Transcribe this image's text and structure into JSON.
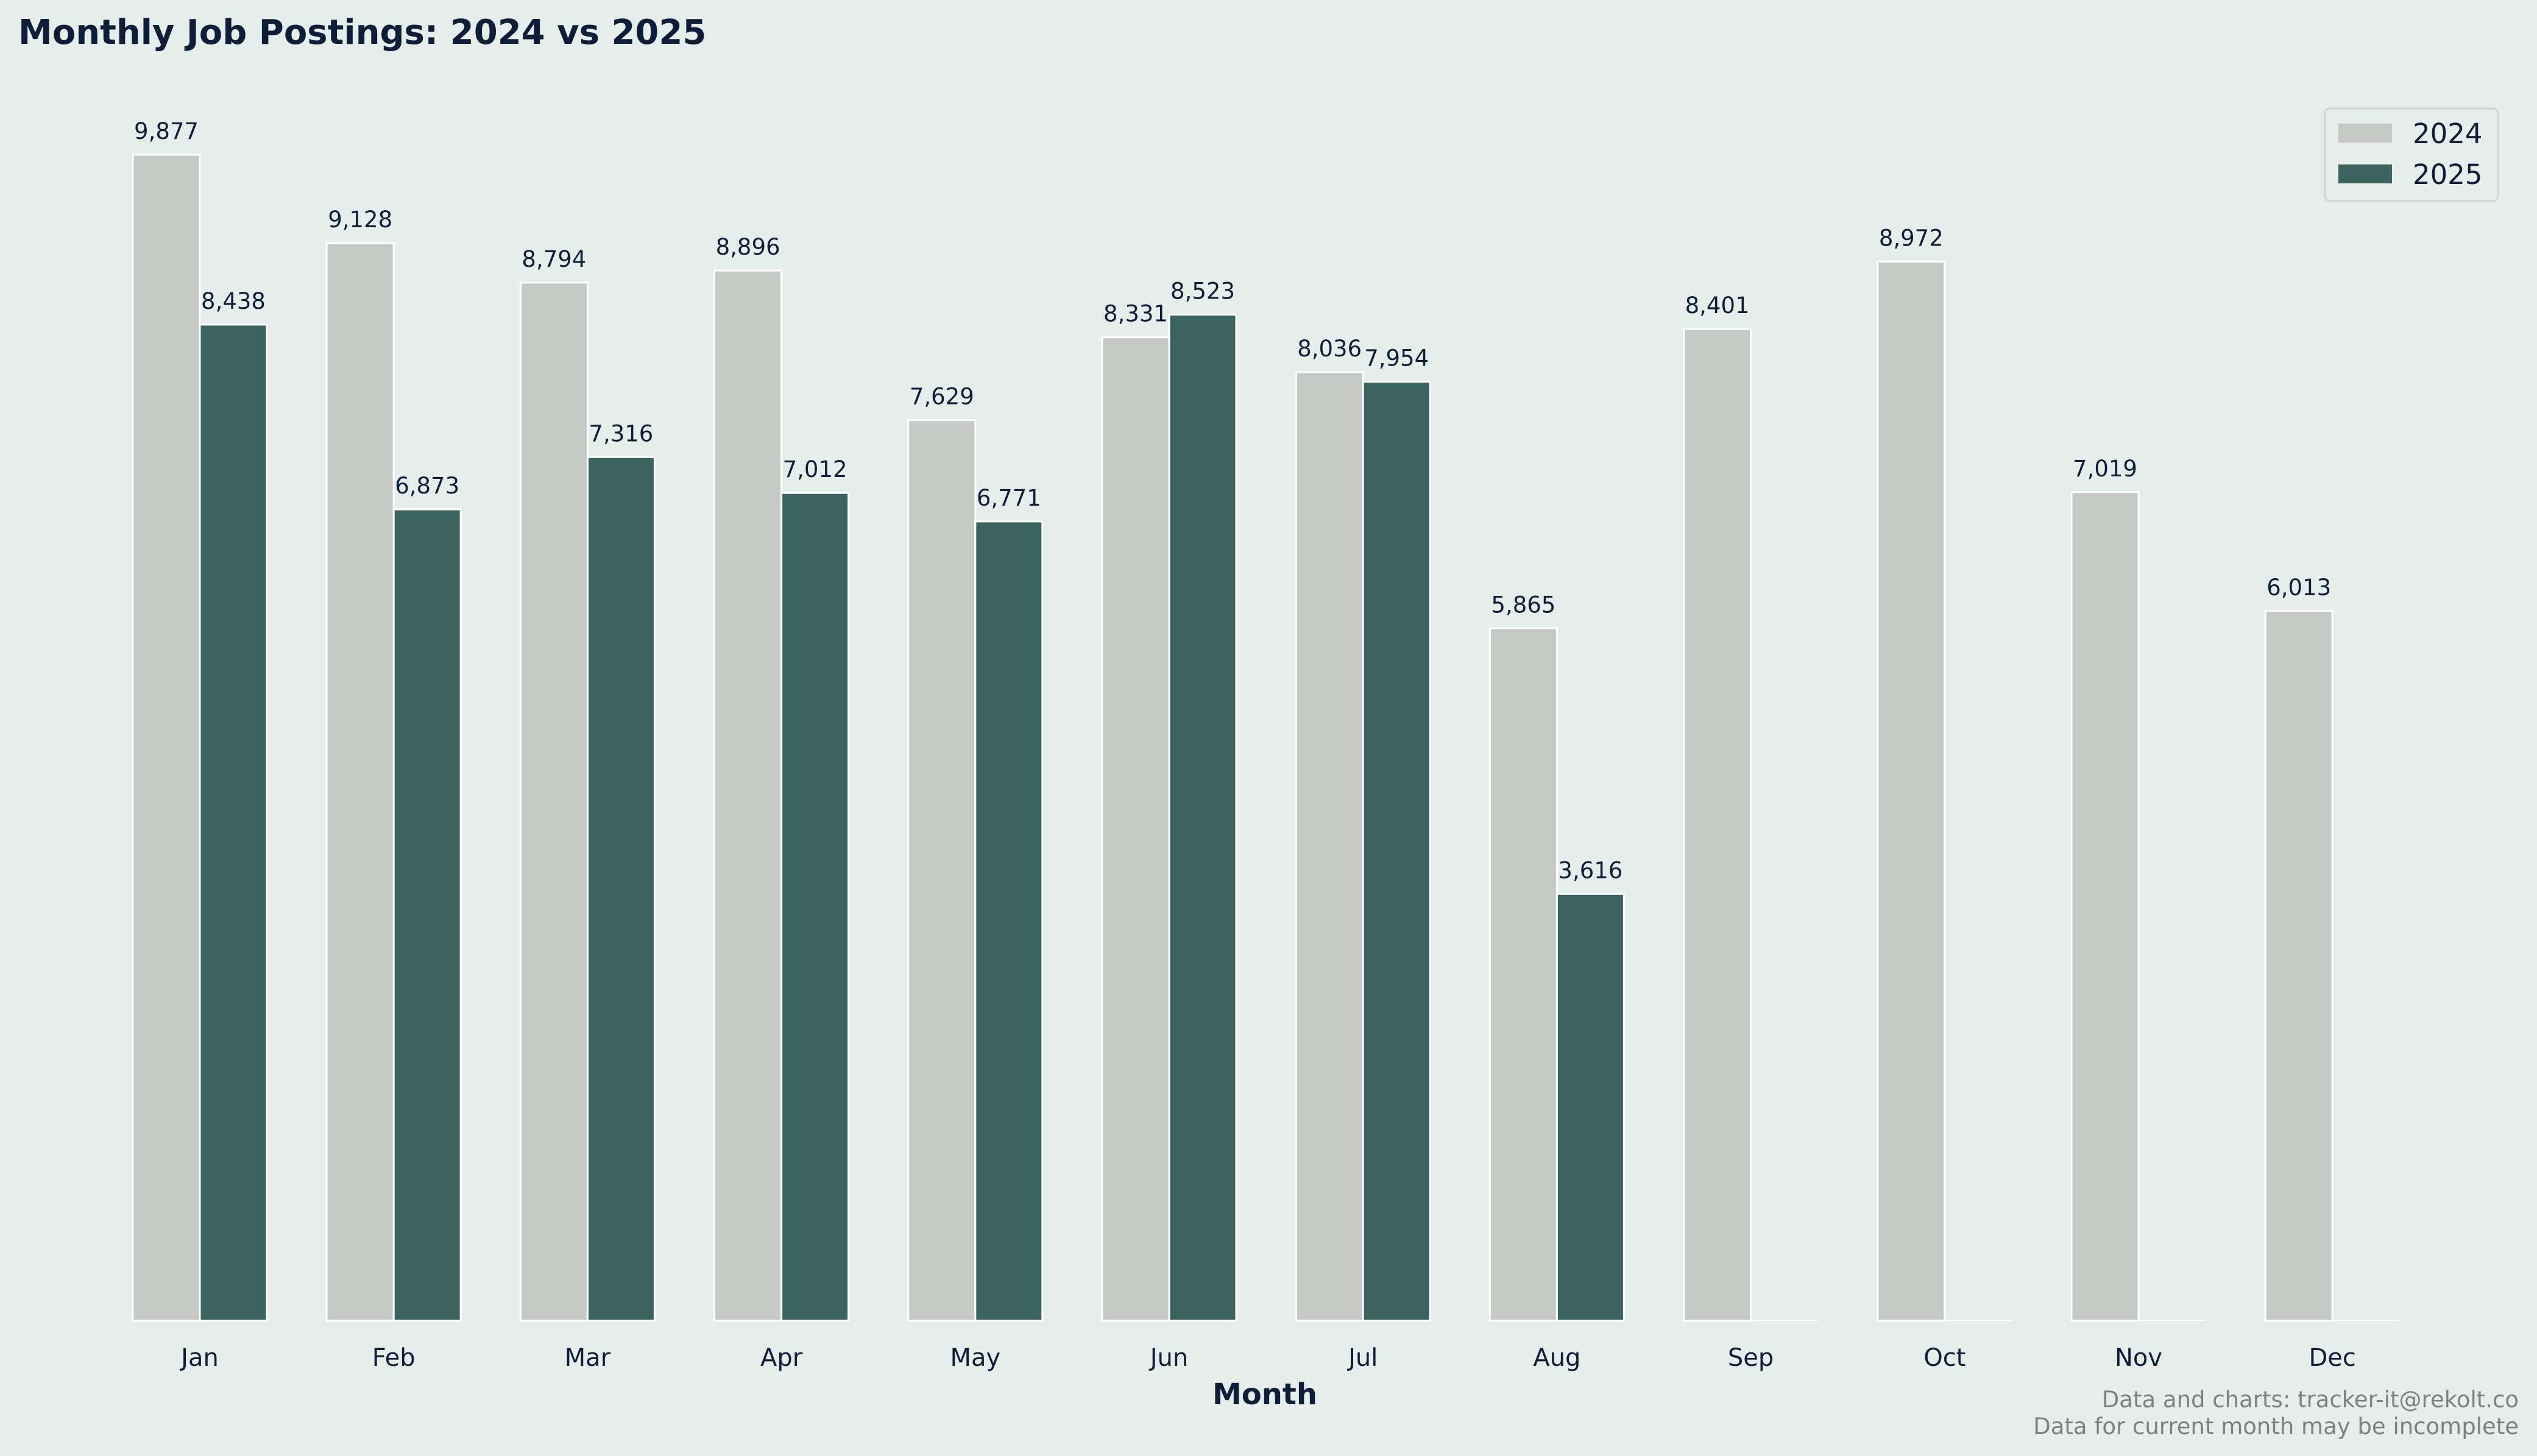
{
  "chart_data": {
    "type": "bar",
    "title": "Monthly Job Postings: 2024 vs 2025",
    "xlabel": "Month",
    "ylabel": "",
    "ylim": [
      0,
      10000
    ],
    "grid": false,
    "legend_position": "top-right",
    "categories": [
      "Jan",
      "Feb",
      "Mar",
      "Apr",
      "May",
      "Jun",
      "Jul",
      "Aug",
      "Sep",
      "Oct",
      "Nov",
      "Dec"
    ],
    "series": [
      {
        "name": "2024",
        "color": "#c6c8c6",
        "values": [
          9877,
          9128,
          8794,
          8896,
          7629,
          8331,
          8036,
          5865,
          8401,
          8972,
          7019,
          6013
        ],
        "labels": [
          "9,877",
          "9,128",
          "8,794",
          "8,896",
          "7,629",
          "8,331",
          "8,036",
          "5,865",
          "8,401",
          "8,972",
          "7,019",
          "6,013"
        ]
      },
      {
        "name": "2025",
        "color": "#3b6461",
        "values": [
          8438,
          6873,
          7316,
          7012,
          6771,
          8523,
          7954,
          3616,
          0,
          0,
          0,
          0
        ],
        "labels": [
          "8,438",
          "6,873",
          "7,316",
          "7,012",
          "6,771",
          "8,523",
          "7,954",
          "3,616",
          "",
          "",
          "",
          ""
        ]
      }
    ],
    "footer": [
      "Data and charts: tracker-it@rekolt.co",
      "Data for current month may be incomplete"
    ]
  }
}
